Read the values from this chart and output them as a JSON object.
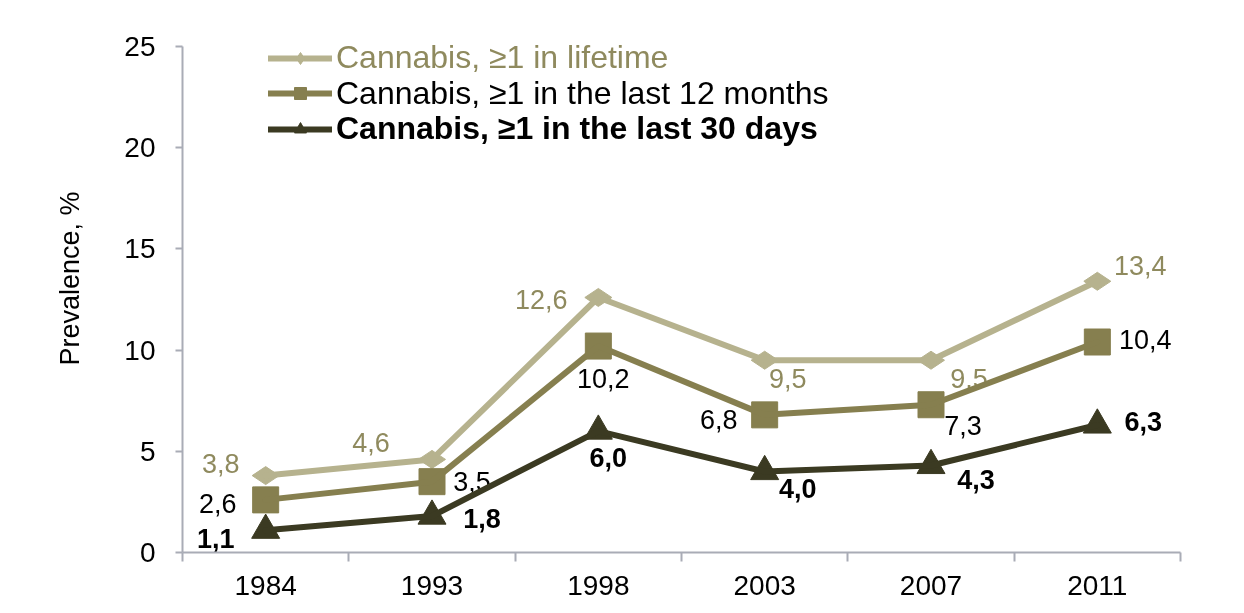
{
  "chart_data": {
    "type": "line",
    "ylabel": "Prevalence, %",
    "categories": [
      "1984",
      "1993",
      "1998",
      "2003",
      "2007",
      "2011"
    ],
    "ylim": [
      0,
      25
    ],
    "yticks": [
      0,
      5,
      10,
      15,
      20,
      25
    ],
    "grid": false,
    "legend": "top left",
    "series": [
      {
        "name": "Cannabis, ≥1 in lifetime",
        "color": "#b6b28e",
        "marker": "diamond",
        "values": [
          3.8,
          4.6,
          12.6,
          9.5,
          9.5,
          13.4
        ],
        "value_labels": [
          "3,8",
          "4,6",
          "12,6",
          "9,5",
          "9,5",
          "13,4"
        ]
      },
      {
        "name": "Cannabis, ≥1 in the last 12 months",
        "color": "#867f4f",
        "marker": "square",
        "values": [
          2.6,
          3.5,
          10.2,
          6.8,
          7.3,
          10.4
        ],
        "value_labels": [
          "2,6",
          "3,5",
          "10,2",
          "6,8",
          "7,3",
          "10,4"
        ]
      },
      {
        "name": "Cannabis, ≥1 in the last 30 days",
        "color": "#3b3a22",
        "marker": "triangle",
        "values": [
          1.1,
          1.8,
          6.0,
          4.0,
          4.3,
          6.3
        ],
        "value_labels": [
          "1,1",
          "1,8",
          "6,0",
          "4,0",
          "4,3",
          "6,3"
        ]
      }
    ]
  }
}
